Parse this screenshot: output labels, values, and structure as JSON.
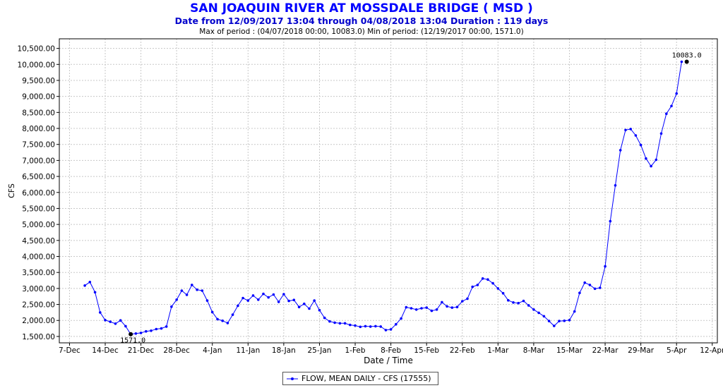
{
  "title": "SAN JOAQUIN RIVER AT MOSSDALE BRIDGE ( MSD )",
  "subtitle": "Date from 12/09/2017 13:04 through 04/08/2018 13:04 Duration : 119 days",
  "period_info": "Max of period : (04/07/2018 00:00, 10083.0)  Min of period: (12/19/2017 00:00,  1571.0)",
  "colors": {
    "series": "#0000ff",
    "title": "#0000ff"
  },
  "chart_data": {
    "type": "line",
    "xlabel": "Date / Time",
    "ylabel": "CFS",
    "ylim": [
      1300,
      10800
    ],
    "grid": true,
    "legend_position": "bottom",
    "x_tick_labels": [
      "7-Dec",
      "14-Dec",
      "21-Dec",
      "28-Dec",
      "4-Jan",
      "11-Jan",
      "18-Jan",
      "25-Jan",
      "1-Feb",
      "8-Feb",
      "15-Feb",
      "22-Feb",
      "1-Mar",
      "8-Mar",
      "15-Mar",
      "22-Mar",
      "29-Mar",
      "5-Apr",
      "12-Apr"
    ],
    "y_tick_labels": [
      "1,500.00",
      "2,000.00",
      "2,500.00",
      "3,000.00",
      "3,500.00",
      "4,000.00",
      "4,500.00",
      "5,000.00",
      "5,500.00",
      "6,000.00",
      "6,500.00",
      "7,000.00",
      "7,500.00",
      "8,000.00",
      "8,500.00",
      "9,000.00",
      "9,500.00",
      "10,000.00",
      "10,500.00"
    ],
    "y_ticks": [
      1500,
      2000,
      2500,
      3000,
      3500,
      4000,
      4500,
      5000,
      5500,
      6000,
      6500,
      7000,
      7500,
      8000,
      8500,
      9000,
      9500,
      10000,
      10500
    ],
    "series": [
      {
        "name": "FLOW, MEAN DAILY - CFS (17555)",
        "start_date": "2017-12-10",
        "values": [
          3090,
          3200,
          2880,
          2250,
          2010,
          1960,
          1900,
          2000,
          1820,
          1571,
          1590,
          1610,
          1660,
          1680,
          1730,
          1750,
          1810,
          2430,
          2650,
          2930,
          2800,
          3110,
          2960,
          2930,
          2620,
          2260,
          2040,
          1990,
          1920,
          2180,
          2460,
          2700,
          2620,
          2780,
          2650,
          2830,
          2720,
          2810,
          2580,
          2820,
          2610,
          2640,
          2420,
          2520,
          2370,
          2620,
          2320,
          2080,
          1970,
          1930,
          1910,
          1910,
          1860,
          1840,
          1800,
          1820,
          1810,
          1820,
          1810,
          1700,
          1720,
          1880,
          2060,
          2410,
          2380,
          2340,
          2380,
          2400,
          2300,
          2340,
          2570,
          2440,
          2400,
          2420,
          2600,
          2680,
          3050,
          3110,
          3310,
          3280,
          3160,
          3000,
          2850,
          2630,
          2560,
          2540,
          2610,
          2470,
          2340,
          2240,
          2130,
          1980,
          1830,
          1980,
          1990,
          2010,
          2280,
          2860,
          3180,
          3110,
          2990,
          3020,
          3690,
          5100,
          6220,
          7320,
          7950,
          7980,
          7780,
          7480,
          7060,
          6820,
          7020,
          7840,
          8460,
          8700,
          9090,
          10083
        ]
      }
    ],
    "annotations": [
      {
        "label": "10083.0",
        "date": "2018-04-07",
        "value": 10083
      },
      {
        "label": "1571.0",
        "date": "2017-12-19",
        "value": 1571
      }
    ]
  }
}
